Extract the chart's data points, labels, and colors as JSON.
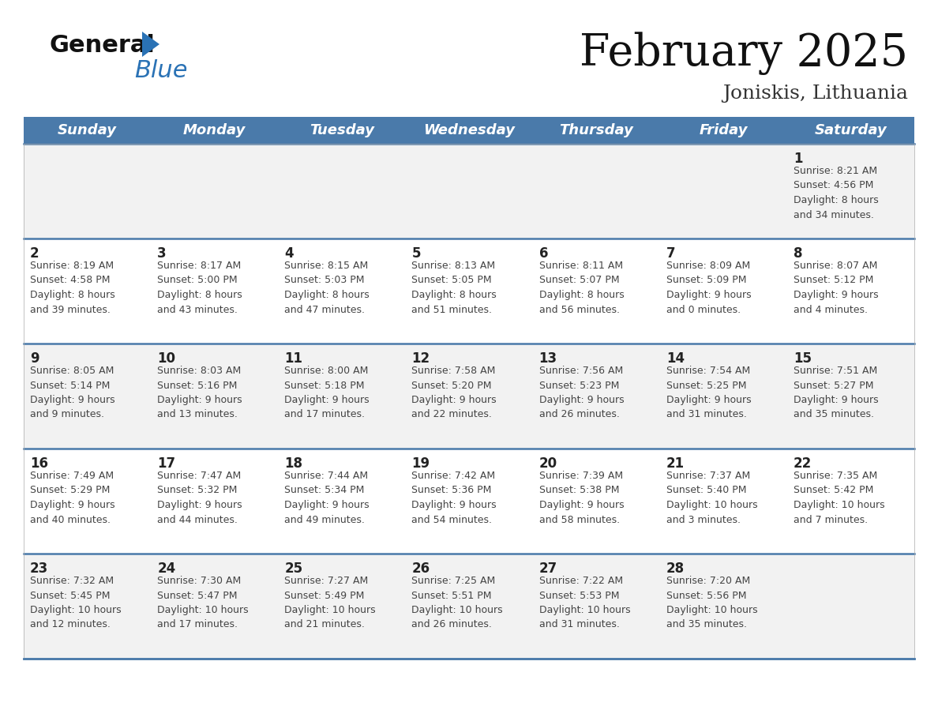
{
  "title": "February 2025",
  "subtitle": "Joniskis, Lithuania",
  "header_color": "#4a7aaa",
  "header_text_color": "#ffffff",
  "days_of_week": [
    "Sunday",
    "Monday",
    "Tuesday",
    "Wednesday",
    "Thursday",
    "Friday",
    "Saturday"
  ],
  "weeks": [
    [
      {
        "day": "",
        "info": ""
      },
      {
        "day": "",
        "info": ""
      },
      {
        "day": "",
        "info": ""
      },
      {
        "day": "",
        "info": ""
      },
      {
        "day": "",
        "info": ""
      },
      {
        "day": "",
        "info": ""
      },
      {
        "day": "1",
        "info": "Sunrise: 8:21 AM\nSunset: 4:56 PM\nDaylight: 8 hours\nand 34 minutes."
      }
    ],
    [
      {
        "day": "2",
        "info": "Sunrise: 8:19 AM\nSunset: 4:58 PM\nDaylight: 8 hours\nand 39 minutes."
      },
      {
        "day": "3",
        "info": "Sunrise: 8:17 AM\nSunset: 5:00 PM\nDaylight: 8 hours\nand 43 minutes."
      },
      {
        "day": "4",
        "info": "Sunrise: 8:15 AM\nSunset: 5:03 PM\nDaylight: 8 hours\nand 47 minutes."
      },
      {
        "day": "5",
        "info": "Sunrise: 8:13 AM\nSunset: 5:05 PM\nDaylight: 8 hours\nand 51 minutes."
      },
      {
        "day": "6",
        "info": "Sunrise: 8:11 AM\nSunset: 5:07 PM\nDaylight: 8 hours\nand 56 minutes."
      },
      {
        "day": "7",
        "info": "Sunrise: 8:09 AM\nSunset: 5:09 PM\nDaylight: 9 hours\nand 0 minutes."
      },
      {
        "day": "8",
        "info": "Sunrise: 8:07 AM\nSunset: 5:12 PM\nDaylight: 9 hours\nand 4 minutes."
      }
    ],
    [
      {
        "day": "9",
        "info": "Sunrise: 8:05 AM\nSunset: 5:14 PM\nDaylight: 9 hours\nand 9 minutes."
      },
      {
        "day": "10",
        "info": "Sunrise: 8:03 AM\nSunset: 5:16 PM\nDaylight: 9 hours\nand 13 minutes."
      },
      {
        "day": "11",
        "info": "Sunrise: 8:00 AM\nSunset: 5:18 PM\nDaylight: 9 hours\nand 17 minutes."
      },
      {
        "day": "12",
        "info": "Sunrise: 7:58 AM\nSunset: 5:20 PM\nDaylight: 9 hours\nand 22 minutes."
      },
      {
        "day": "13",
        "info": "Sunrise: 7:56 AM\nSunset: 5:23 PM\nDaylight: 9 hours\nand 26 minutes."
      },
      {
        "day": "14",
        "info": "Sunrise: 7:54 AM\nSunset: 5:25 PM\nDaylight: 9 hours\nand 31 minutes."
      },
      {
        "day": "15",
        "info": "Sunrise: 7:51 AM\nSunset: 5:27 PM\nDaylight: 9 hours\nand 35 minutes."
      }
    ],
    [
      {
        "day": "16",
        "info": "Sunrise: 7:49 AM\nSunset: 5:29 PM\nDaylight: 9 hours\nand 40 minutes."
      },
      {
        "day": "17",
        "info": "Sunrise: 7:47 AM\nSunset: 5:32 PM\nDaylight: 9 hours\nand 44 minutes."
      },
      {
        "day": "18",
        "info": "Sunrise: 7:44 AM\nSunset: 5:34 PM\nDaylight: 9 hours\nand 49 minutes."
      },
      {
        "day": "19",
        "info": "Sunrise: 7:42 AM\nSunset: 5:36 PM\nDaylight: 9 hours\nand 54 minutes."
      },
      {
        "day": "20",
        "info": "Sunrise: 7:39 AM\nSunset: 5:38 PM\nDaylight: 9 hours\nand 58 minutes."
      },
      {
        "day": "21",
        "info": "Sunrise: 7:37 AM\nSunset: 5:40 PM\nDaylight: 10 hours\nand 3 minutes."
      },
      {
        "day": "22",
        "info": "Sunrise: 7:35 AM\nSunset: 5:42 PM\nDaylight: 10 hours\nand 7 minutes."
      }
    ],
    [
      {
        "day": "23",
        "info": "Sunrise: 7:32 AM\nSunset: 5:45 PM\nDaylight: 10 hours\nand 12 minutes."
      },
      {
        "day": "24",
        "info": "Sunrise: 7:30 AM\nSunset: 5:47 PM\nDaylight: 10 hours\nand 17 minutes."
      },
      {
        "day": "25",
        "info": "Sunrise: 7:27 AM\nSunset: 5:49 PM\nDaylight: 10 hours\nand 21 minutes."
      },
      {
        "day": "26",
        "info": "Sunrise: 7:25 AM\nSunset: 5:51 PM\nDaylight: 10 hours\nand 26 minutes."
      },
      {
        "day": "27",
        "info": "Sunrise: 7:22 AM\nSunset: 5:53 PM\nDaylight: 10 hours\nand 31 minutes."
      },
      {
        "day": "28",
        "info": "Sunrise: 7:20 AM\nSunset: 5:56 PM\nDaylight: 10 hours\nand 35 minutes."
      },
      {
        "day": "",
        "info": ""
      }
    ]
  ],
  "week1_bg": "#f2f2f2",
  "week_bg_odd": "#f2f2f2",
  "week_bg_even": "#ffffff",
  "week_border_color": "#4a7aaa",
  "day_number_color": "#222222",
  "info_text_color": "#444444",
  "bg_color": "#ffffff",
  "logo_general_color": "#111111",
  "logo_blue_color": "#2a72b5",
  "logo_triangle_color": "#2a72b5",
  "title_color": "#111111",
  "subtitle_color": "#333333"
}
